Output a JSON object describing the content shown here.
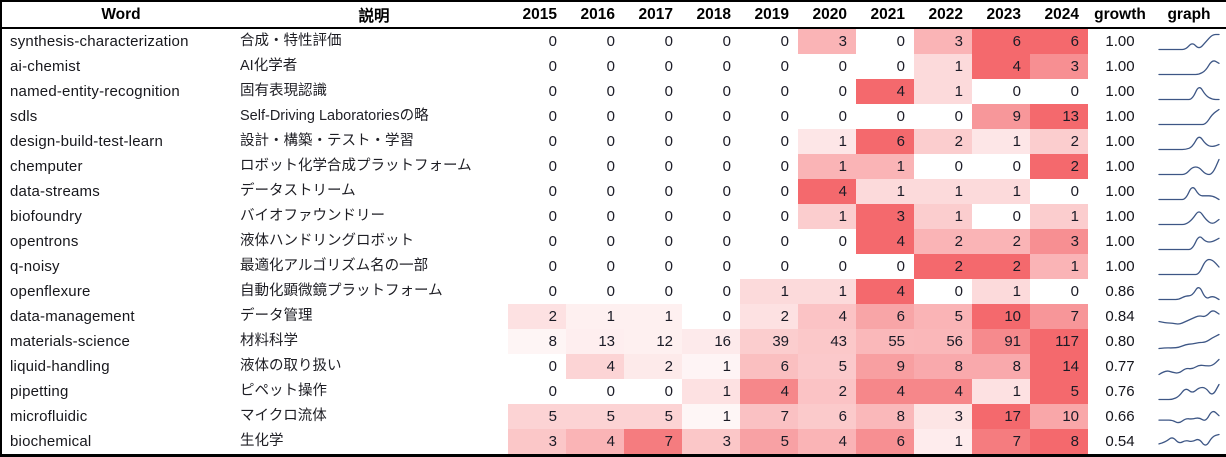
{
  "table": {
    "headers": {
      "word": "Word",
      "desc": "説明",
      "years": [
        "2015",
        "2016",
        "2017",
        "2018",
        "2019",
        "2020",
        "2021",
        "2022",
        "2023",
        "2024"
      ],
      "growth": "growth",
      "graph": "graph"
    }
  },
  "colors": {
    "heat_max": "#f4696d",
    "heat_max_rgb": [
      244,
      105,
      109
    ],
    "heat_min": "#ffffff",
    "sparkline": "#3d5685",
    "border": "#000000"
  },
  "chart_data": {
    "type": "heatmap",
    "title": "Keyword frequency by year with per-row heat shading, growth score and trend sparkline",
    "x": [
      "2015",
      "2016",
      "2017",
      "2018",
      "2019",
      "2020",
      "2021",
      "2022",
      "2023",
      "2024"
    ],
    "normalization": "per-row: cell color intensity = value / row max, white to red",
    "sparkline_note": "graph column draws a line chart of each row's yearly values",
    "rows": [
      {
        "word": "synthesis-characterization",
        "desc": "合成・特性評価",
        "values": [
          0,
          0,
          0,
          0,
          0,
          3,
          0,
          3,
          6,
          6
        ],
        "growth": "1.00"
      },
      {
        "word": "ai-chemist",
        "desc": "AI化学者",
        "values": [
          0,
          0,
          0,
          0,
          0,
          0,
          0,
          1,
          4,
          3
        ],
        "growth": "1.00"
      },
      {
        "word": "named-entity-recognition",
        "desc": "固有表現認識",
        "values": [
          0,
          0,
          0,
          0,
          0,
          0,
          4,
          1,
          0,
          0
        ],
        "growth": "1.00"
      },
      {
        "word": "sdls",
        "desc": "Self-Driving Laboratoriesの略",
        "values": [
          0,
          0,
          0,
          0,
          0,
          0,
          0,
          0,
          9,
          13
        ],
        "growth": "1.00"
      },
      {
        "word": "design-build-test-learn",
        "desc": "設計・構築・テスト・学習",
        "values": [
          0,
          0,
          0,
          0,
          0,
          1,
          6,
          2,
          1,
          2
        ],
        "growth": "1.00"
      },
      {
        "word": "chemputer",
        "desc": "ロボット化学合成プラットフォーム",
        "values": [
          0,
          0,
          0,
          0,
          0,
          1,
          1,
          0,
          0,
          2
        ],
        "growth": "1.00"
      },
      {
        "word": "data-streams",
        "desc": "データストリーム",
        "values": [
          0,
          0,
          0,
          0,
          0,
          4,
          1,
          1,
          1,
          0
        ],
        "growth": "1.00"
      },
      {
        "word": "biofoundry",
        "desc": "バイオファウンドリー",
        "values": [
          0,
          0,
          0,
          0,
          0,
          1,
          3,
          1,
          0,
          1
        ],
        "growth": "1.00"
      },
      {
        "word": "opentrons",
        "desc": "液体ハンドリングロボット",
        "values": [
          0,
          0,
          0,
          0,
          0,
          0,
          4,
          2,
          2,
          3
        ],
        "growth": "1.00"
      },
      {
        "word": "q-noisy",
        "desc": "最適化アルゴリズム名の一部",
        "values": [
          0,
          0,
          0,
          0,
          0,
          0,
          0,
          2,
          2,
          1
        ],
        "growth": "1.00"
      },
      {
        "word": "openflexure",
        "desc": "自動化顕微鏡プラットフォーム",
        "values": [
          0,
          0,
          0,
          0,
          1,
          1,
          4,
          0,
          1,
          0
        ],
        "growth": "0.86"
      },
      {
        "word": "data-management",
        "desc": "データ管理",
        "values": [
          2,
          1,
          1,
          0,
          2,
          4,
          6,
          5,
          10,
          7
        ],
        "growth": "0.84"
      },
      {
        "word": "materials-science",
        "desc": "材料科学",
        "values": [
          8,
          13,
          12,
          16,
          39,
          43,
          55,
          56,
          91,
          117
        ],
        "growth": "0.80"
      },
      {
        "word": "liquid-handling",
        "desc": "液体の取り扱い",
        "values": [
          0,
          4,
          2,
          1,
          6,
          5,
          9,
          8,
          8,
          14
        ],
        "growth": "0.77"
      },
      {
        "word": "pipetting",
        "desc": "ピペット操作",
        "values": [
          0,
          0,
          0,
          1,
          4,
          2,
          4,
          4,
          1,
          5
        ],
        "growth": "0.76"
      },
      {
        "word": "microfluidic",
        "desc": "マイクロ流体",
        "values": [
          5,
          5,
          5,
          1,
          7,
          6,
          8,
          3,
          17,
          10
        ],
        "growth": "0.66"
      },
      {
        "word": "biochemical",
        "desc": "生化学",
        "values": [
          3,
          4,
          7,
          3,
          5,
          4,
          6,
          1,
          7,
          8
        ],
        "growth": "0.54"
      }
    ]
  }
}
